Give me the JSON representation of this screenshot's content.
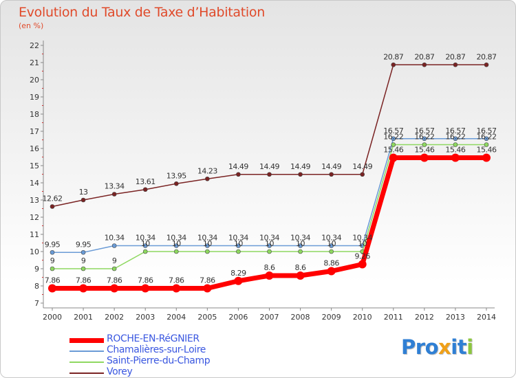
{
  "chart_data": {
    "type": "line",
    "title": "Evolution du Taux de Taxe d’Habitation",
    "subtitle": "(en %)",
    "x": [
      "2000",
      "2001",
      "2002",
      "2003",
      "2004",
      "2005",
      "2006",
      "2007",
      "2008",
      "2009",
      "2010",
      "2011",
      "2012",
      "2013",
      "2014"
    ],
    "yticks": [
      "7",
      "8",
      "9",
      "10",
      "11",
      "12",
      "13",
      "14",
      "15",
      "16",
      "17",
      "18",
      "19",
      "20",
      "21",
      "22"
    ],
    "ylim": [
      7,
      22
    ],
    "grid": false,
    "legend_position": "bottom-left",
    "series": [
      {
        "name": "ROCHE-EN-RéGNIER",
        "color": "#ff0000",
        "values": [
          7.86,
          7.86,
          7.86,
          7.86,
          7.86,
          7.86,
          8.29,
          8.6,
          8.6,
          8.86,
          9.26,
          15.46,
          15.46,
          15.46,
          15.46
        ],
        "labels": [
          "7.86",
          "7.86",
          "7.86",
          "7.86",
          "7.86",
          "7.86",
          "8.29",
          "8.6",
          "8.6",
          "8.86",
          "9.26",
          "15.46",
          "15.46",
          "15.46",
          "15.46"
        ]
      },
      {
        "name": "Chamalières-sur-Loire",
        "color": "#6a9bd6",
        "values": [
          9.95,
          9.95,
          10.34,
          10.34,
          10.34,
          10.34,
          10.34,
          10.34,
          10.34,
          10.34,
          10.34,
          16.57,
          16.57,
          16.57,
          16.57
        ],
        "labels": [
          "9.95",
          "9.95",
          "10.34",
          "10.34",
          "10.34",
          "10.34",
          "10.34",
          "10.34",
          "10.34",
          "10.34",
          "10.34",
          "16.57",
          "16.57",
          "16.57",
          "16.57"
        ]
      },
      {
        "name": "Saint-Pierre-du-Champ",
        "color": "#8ed860",
        "values": [
          9,
          9,
          9,
          10,
          10,
          10,
          10,
          10,
          10,
          10,
          10,
          16.22,
          16.22,
          16.22,
          16.22
        ],
        "labels": [
          "9",
          "9",
          "9",
          "10",
          "10",
          "10",
          "10",
          "10",
          "10",
          "10",
          "10",
          "16.22",
          "16.22",
          "16.22",
          "16.22"
        ]
      },
      {
        "name": "Vorey",
        "color": "#7a2323",
        "values": [
          12.62,
          13,
          13.34,
          13.61,
          13.95,
          14.23,
          14.49,
          14.49,
          14.49,
          14.49,
          14.49,
          20.87,
          20.87,
          20.87,
          20.87
        ],
        "labels": [
          "12.62",
          "13",
          "13.34",
          "13.61",
          "13.95",
          "14.23",
          "14.49",
          "14.49",
          "14.49",
          "14.49",
          "14.49",
          "20.87",
          "20.87",
          "20.87",
          "20.87"
        ]
      }
    ]
  },
  "brand": {
    "letters": [
      {
        "ch": "P",
        "color": "#2f7fd4"
      },
      {
        "ch": "r",
        "color": "#2f7fd4"
      },
      {
        "ch": "o",
        "color": "#2f7fd4"
      },
      {
        "ch": "x",
        "color": "#f0a018"
      },
      {
        "ch": "i",
        "color": "#2f7fd4"
      },
      {
        "ch": "t",
        "color": "#2f7fd4"
      },
      {
        "ch": "i",
        "color": "#8cc63f"
      }
    ]
  }
}
